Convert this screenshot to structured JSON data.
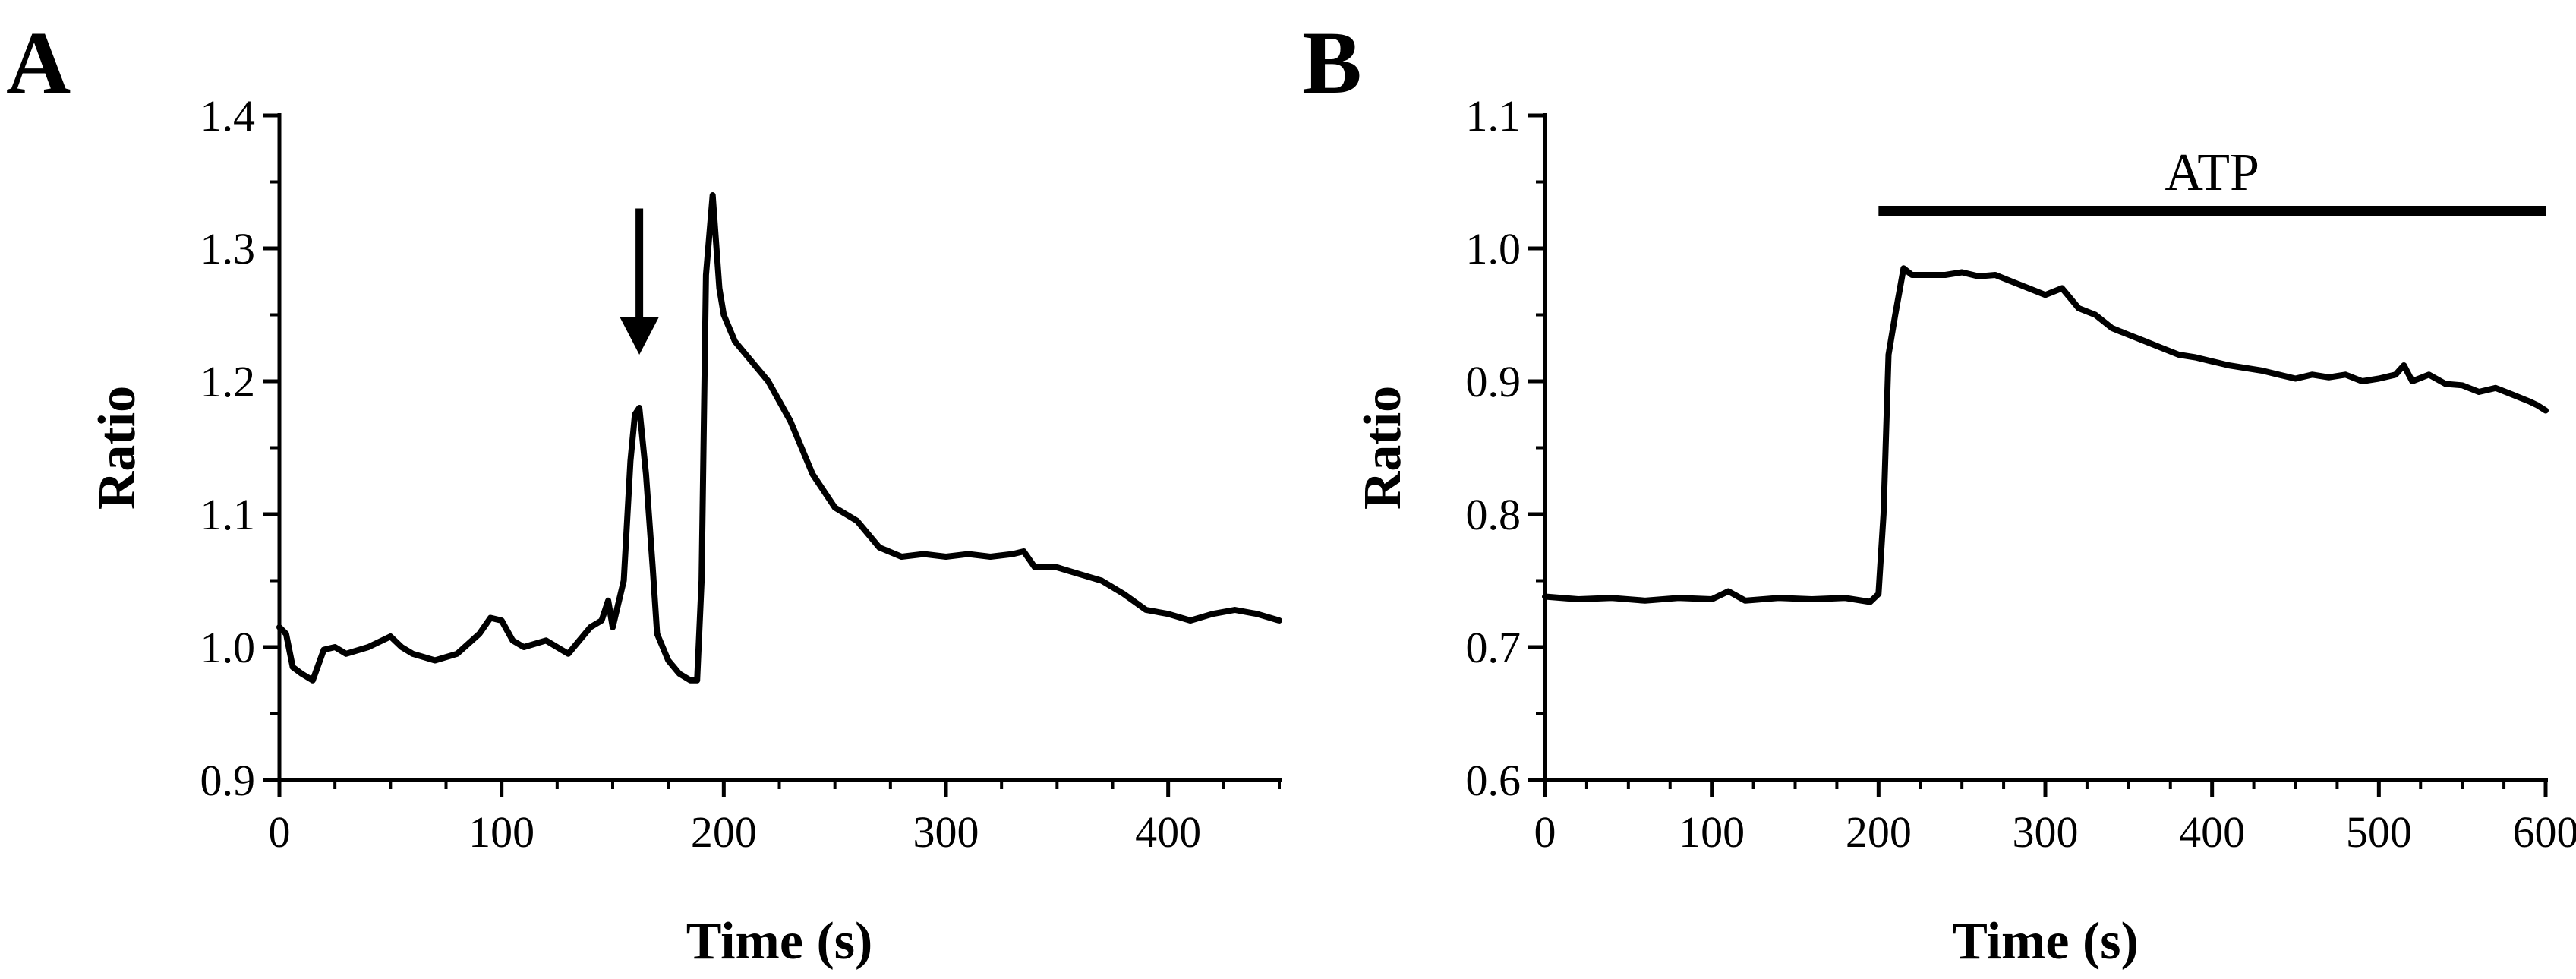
{
  "figure": {
    "panels": [
      {
        "label": "A"
      },
      {
        "label": "B"
      }
    ]
  },
  "chart_data": [
    {
      "type": "line",
      "panel": "A",
      "title": "",
      "xlabel": "Time (s)",
      "ylabel": "Ratio",
      "xlim": [
        0,
        450
      ],
      "ylim": [
        0.9,
        1.4
      ],
      "xticks": [
        0,
        100,
        200,
        300,
        400
      ],
      "yticks": [
        0.9,
        1.0,
        1.1,
        1.2,
        1.3,
        1.4
      ],
      "xtick_labels": [
        "0",
        "100",
        "200",
        "300",
        "400"
      ],
      "ytick_labels": [
        "0.9",
        "1.0",
        "1.1",
        "1.2",
        "1.3",
        "1.4"
      ],
      "grid": false,
      "legend": "none",
      "annotations": [
        {
          "type": "arrow",
          "x": 162,
          "y_from": 1.33,
          "y_to": 1.22,
          "direction": "down"
        }
      ],
      "series": [
        {
          "x": [
            0,
            3,
            6,
            10,
            15,
            20,
            25,
            30,
            40,
            50,
            55,
            60,
            70,
            80,
            90,
            95,
            100,
            105,
            110,
            120,
            130,
            140,
            145,
            148,
            150,
            155,
            158,
            160,
            162,
            165,
            168,
            170,
            175,
            180,
            185,
            188,
            190,
            192,
            195,
            198,
            200,
            205,
            210,
            220,
            230,
            240,
            250,
            260,
            270,
            280,
            290,
            300,
            310,
            320,
            330,
            335,
            340,
            350,
            360,
            370,
            380,
            390,
            400,
            410,
            420,
            430,
            440,
            450
          ],
          "y": [
            1.015,
            1.01,
            0.985,
            0.98,
            0.975,
            0.998,
            1.0,
            0.995,
            1.0,
            1.008,
            1.0,
            0.995,
            0.99,
            0.995,
            1.01,
            1.022,
            1.02,
            1.005,
            1.0,
            1.005,
            0.995,
            1.015,
            1.02,
            1.035,
            1.015,
            1.05,
            1.14,
            1.175,
            1.18,
            1.13,
            1.06,
            1.01,
            0.99,
            0.98,
            0.975,
            0.975,
            1.05,
            1.28,
            1.34,
            1.27,
            1.25,
            1.23,
            1.22,
            1.2,
            1.17,
            1.13,
            1.105,
            1.095,
            1.075,
            1.068,
            1.07,
            1.068,
            1.07,
            1.068,
            1.07,
            1.072,
            1.06,
            1.06,
            1.055,
            1.05,
            1.04,
            1.028,
            1.025,
            1.02,
            1.025,
            1.028,
            1.025,
            1.02
          ]
        }
      ]
    },
    {
      "type": "line",
      "panel": "B",
      "title": "",
      "xlabel": "Time (s)",
      "ylabel": "Ratio",
      "xlim": [
        0,
        600
      ],
      "ylim": [
        0.6,
        1.1
      ],
      "xticks": [
        0,
        100,
        200,
        300,
        400,
        500,
        600
      ],
      "yticks": [
        0.6,
        0.7,
        0.8,
        0.9,
        1.0,
        1.1
      ],
      "xtick_labels": [
        "0",
        "100",
        "200",
        "300",
        "400",
        "500",
        "600"
      ],
      "ytick_labels": [
        "0.6",
        "0.7",
        "0.8",
        "0.9",
        "1.0",
        "1.1"
      ],
      "grid": false,
      "legend": "none",
      "annotations": [
        {
          "type": "bar",
          "label": "ATP",
          "x_start": 200,
          "x_end": 600,
          "y": 1.028
        }
      ],
      "series": [
        {
          "x": [
            0,
            20,
            40,
            60,
            80,
            100,
            110,
            120,
            140,
            160,
            180,
            195,
            200,
            203,
            206,
            210,
            215,
            220,
            230,
            240,
            250,
            260,
            270,
            280,
            290,
            300,
            310,
            320,
            330,
            340,
            350,
            360,
            370,
            380,
            390,
            400,
            410,
            420,
            430,
            440,
            450,
            460,
            470,
            480,
            490,
            500,
            510,
            515,
            520,
            530,
            540,
            550,
            560,
            570,
            580,
            590,
            595,
            600
          ],
          "y": [
            0.738,
            0.736,
            0.737,
            0.735,
            0.737,
            0.736,
            0.742,
            0.735,
            0.737,
            0.736,
            0.737,
            0.734,
            0.74,
            0.8,
            0.92,
            0.95,
            0.985,
            0.98,
            0.98,
            0.98,
            0.982,
            0.979,
            0.98,
            0.975,
            0.97,
            0.965,
            0.97,
            0.955,
            0.95,
            0.94,
            0.935,
            0.93,
            0.925,
            0.92,
            0.918,
            0.915,
            0.912,
            0.91,
            0.908,
            0.905,
            0.902,
            0.905,
            0.903,
            0.905,
            0.9,
            0.902,
            0.905,
            0.912,
            0.9,
            0.905,
            0.898,
            0.897,
            0.892,
            0.895,
            0.89,
            0.885,
            0.882,
            0.878
          ]
        }
      ]
    }
  ]
}
